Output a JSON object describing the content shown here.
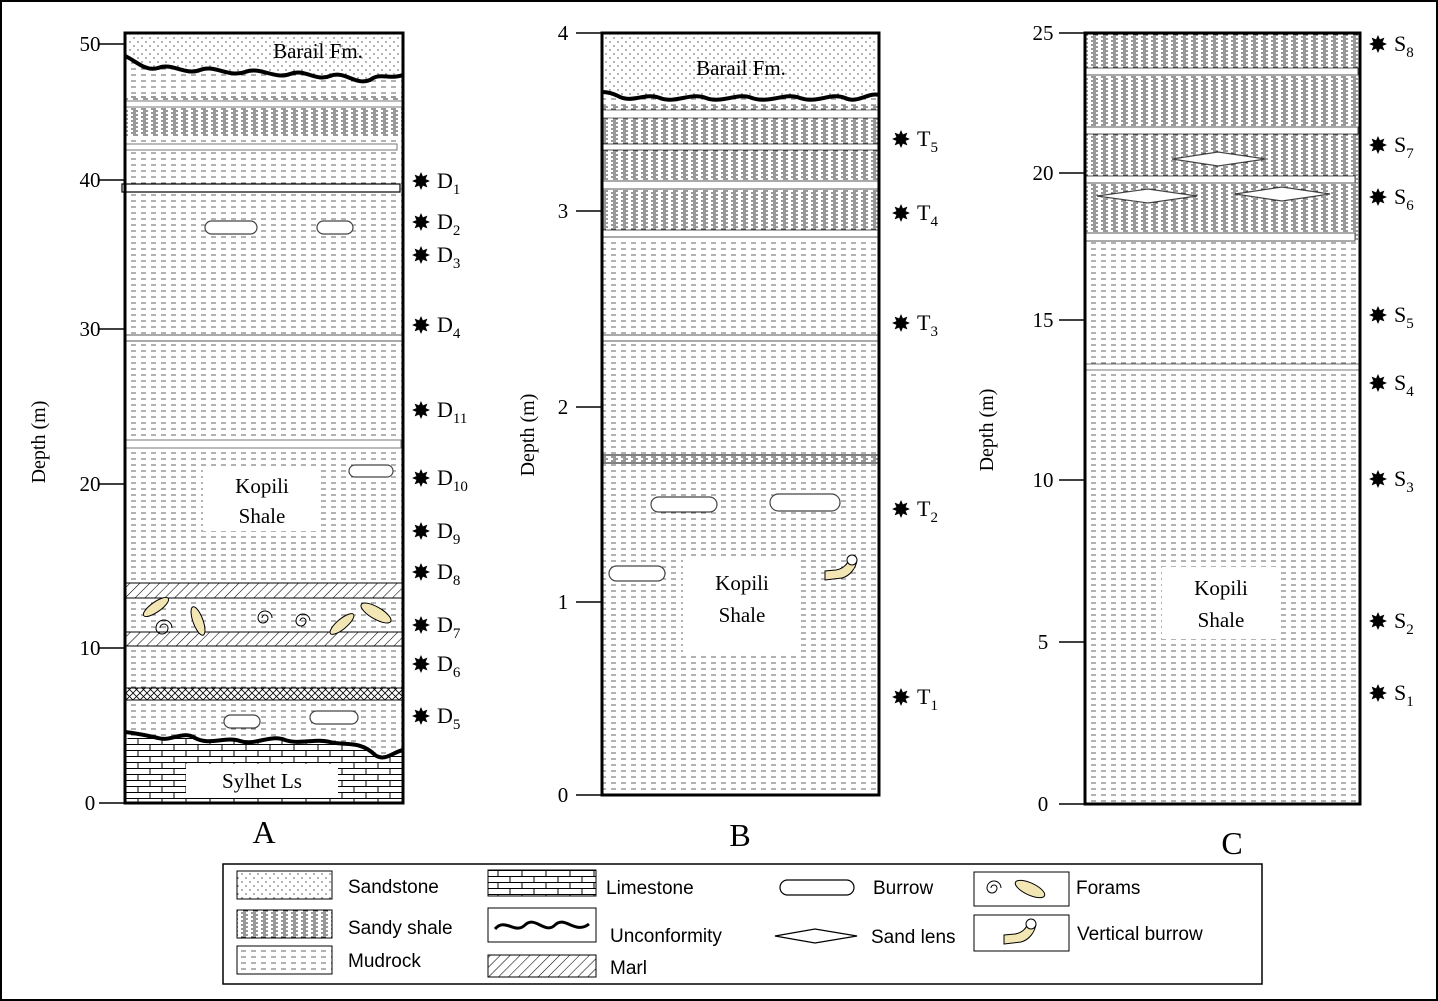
{
  "columns": [
    {
      "letter": "A",
      "axis_label": "Depth (m)",
      "ticks": [
        "0",
        "10",
        "20",
        "30",
        "40",
        "50"
      ],
      "top_unit": "Barail Fm.",
      "main_unit": [
        "Kopili",
        "Shale"
      ],
      "base_unit": "Sylhet Ls",
      "samples": [
        {
          "id": "D",
          "sub": "1"
        },
        {
          "id": "D",
          "sub": "2"
        },
        {
          "id": "D",
          "sub": "3"
        },
        {
          "id": "D",
          "sub": "4"
        },
        {
          "id": "D",
          "sub": "11"
        },
        {
          "id": "D",
          "sub": "10"
        },
        {
          "id": "D",
          "sub": "9"
        },
        {
          "id": "D",
          "sub": "8"
        },
        {
          "id": "D",
          "sub": "7"
        },
        {
          "id": "D",
          "sub": "6"
        },
        {
          "id": "D",
          "sub": "5"
        }
      ]
    },
    {
      "letter": "B",
      "axis_label": "Depth (m)",
      "ticks": [
        "0",
        "1",
        "2",
        "3",
        "4"
      ],
      "top_unit": "Barail Fm.",
      "main_unit": [
        "Kopili",
        "Shale"
      ],
      "samples": [
        {
          "id": "T",
          "sub": "5"
        },
        {
          "id": "T",
          "sub": "4"
        },
        {
          "id": "T",
          "sub": "3"
        },
        {
          "id": "T",
          "sub": "2"
        },
        {
          "id": "T",
          "sub": "1"
        }
      ]
    },
    {
      "letter": "C",
      "axis_label": "Depth (m)",
      "ticks": [
        "0",
        "5",
        "10",
        "15",
        "20",
        "25"
      ],
      "main_unit": [
        "Kopili",
        "Shale"
      ],
      "samples": [
        {
          "id": "S",
          "sub": "8"
        },
        {
          "id": "S",
          "sub": "7"
        },
        {
          "id": "S",
          "sub": "6"
        },
        {
          "id": "S",
          "sub": "5"
        },
        {
          "id": "S",
          "sub": "4"
        },
        {
          "id": "S",
          "sub": "3"
        },
        {
          "id": "S",
          "sub": "2"
        },
        {
          "id": "S",
          "sub": "1"
        }
      ]
    }
  ],
  "legend": {
    "sandstone": "Sandstone",
    "sandy_shale": "Sandy shale",
    "mudrock": "Mudrock",
    "limestone": "Limestone",
    "unconformity": "Unconformity",
    "marl": "Marl",
    "burrow": "Burrow",
    "sand_lens": "Sand lens",
    "forams": "Forams",
    "vertical_burrow": "Vertical burrow"
  },
  "colors": {
    "fossil_fill": "#f3e6b5",
    "line": "#000000"
  }
}
